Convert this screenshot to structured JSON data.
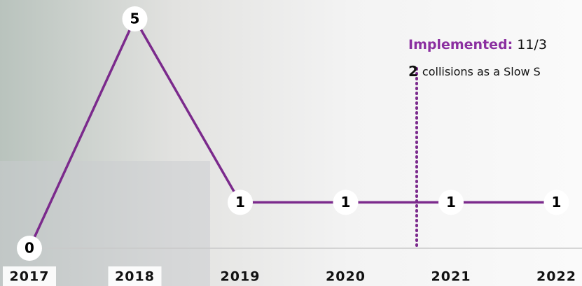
{
  "chart_data": {
    "type": "line",
    "categories": [
      "2017",
      "2018",
      "2019",
      "2020",
      "2021",
      "2022"
    ],
    "values": [
      0,
      5,
      1,
      1,
      1,
      1
    ],
    "color": "#7b2a8c",
    "annotation": {
      "label": "Implemented:",
      "date": "11/3",
      "count": 2,
      "text": "collisions as a Slow S"
    }
  }
}
